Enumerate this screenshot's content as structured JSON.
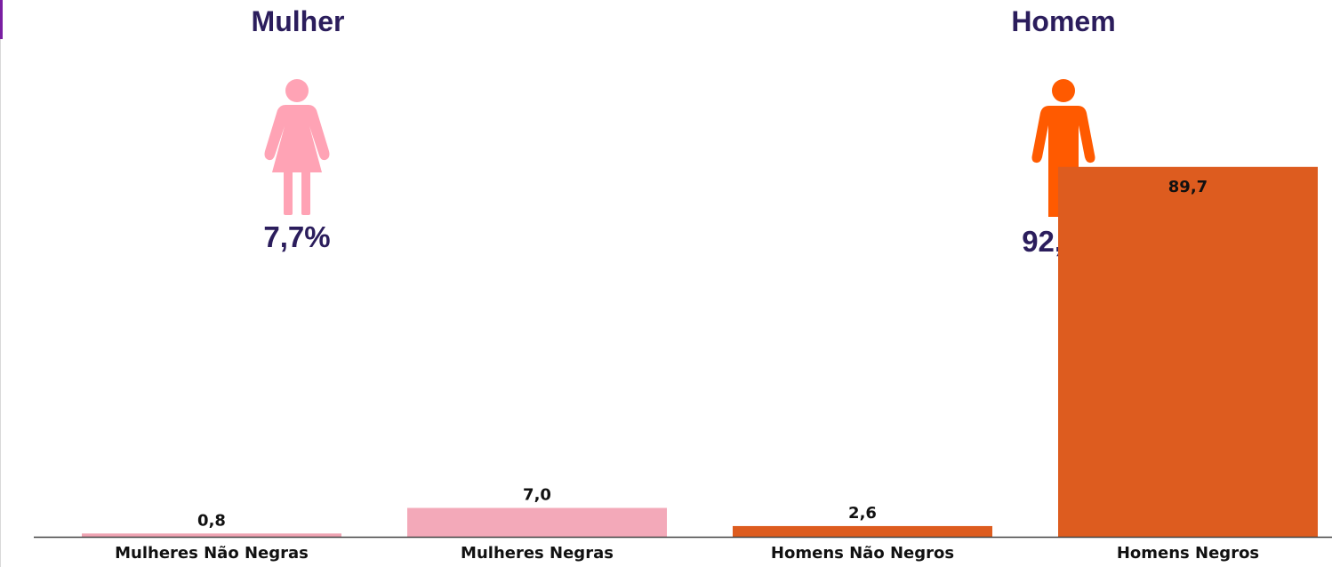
{
  "women": {
    "title": "Mulher",
    "percent": "7,7%",
    "icon": "woman-icon",
    "color": "#ffa3b5"
  },
  "men": {
    "title": "Homem",
    "percent": "92,3%",
    "icon": "man-icon",
    "color": "#ff5a00"
  },
  "chart_data": {
    "type": "bar",
    "categories": [
      "Mulheres Não Negras",
      "Mulheres Negras",
      "Homens Não Negros",
      "Homens Negros"
    ],
    "values": [
      0.8,
      7.0,
      2.6,
      89.7
    ],
    "value_labels": [
      "0,8",
      "7,0",
      "2,6",
      "89,7"
    ],
    "colors": [
      "#efa3b3",
      "#f3a9b9",
      "#dd5c1f",
      "#dd5c1f"
    ],
    "ylim": [
      0,
      100
    ],
    "grid": false,
    "title": "",
    "xlabel": "",
    "ylabel": ""
  }
}
